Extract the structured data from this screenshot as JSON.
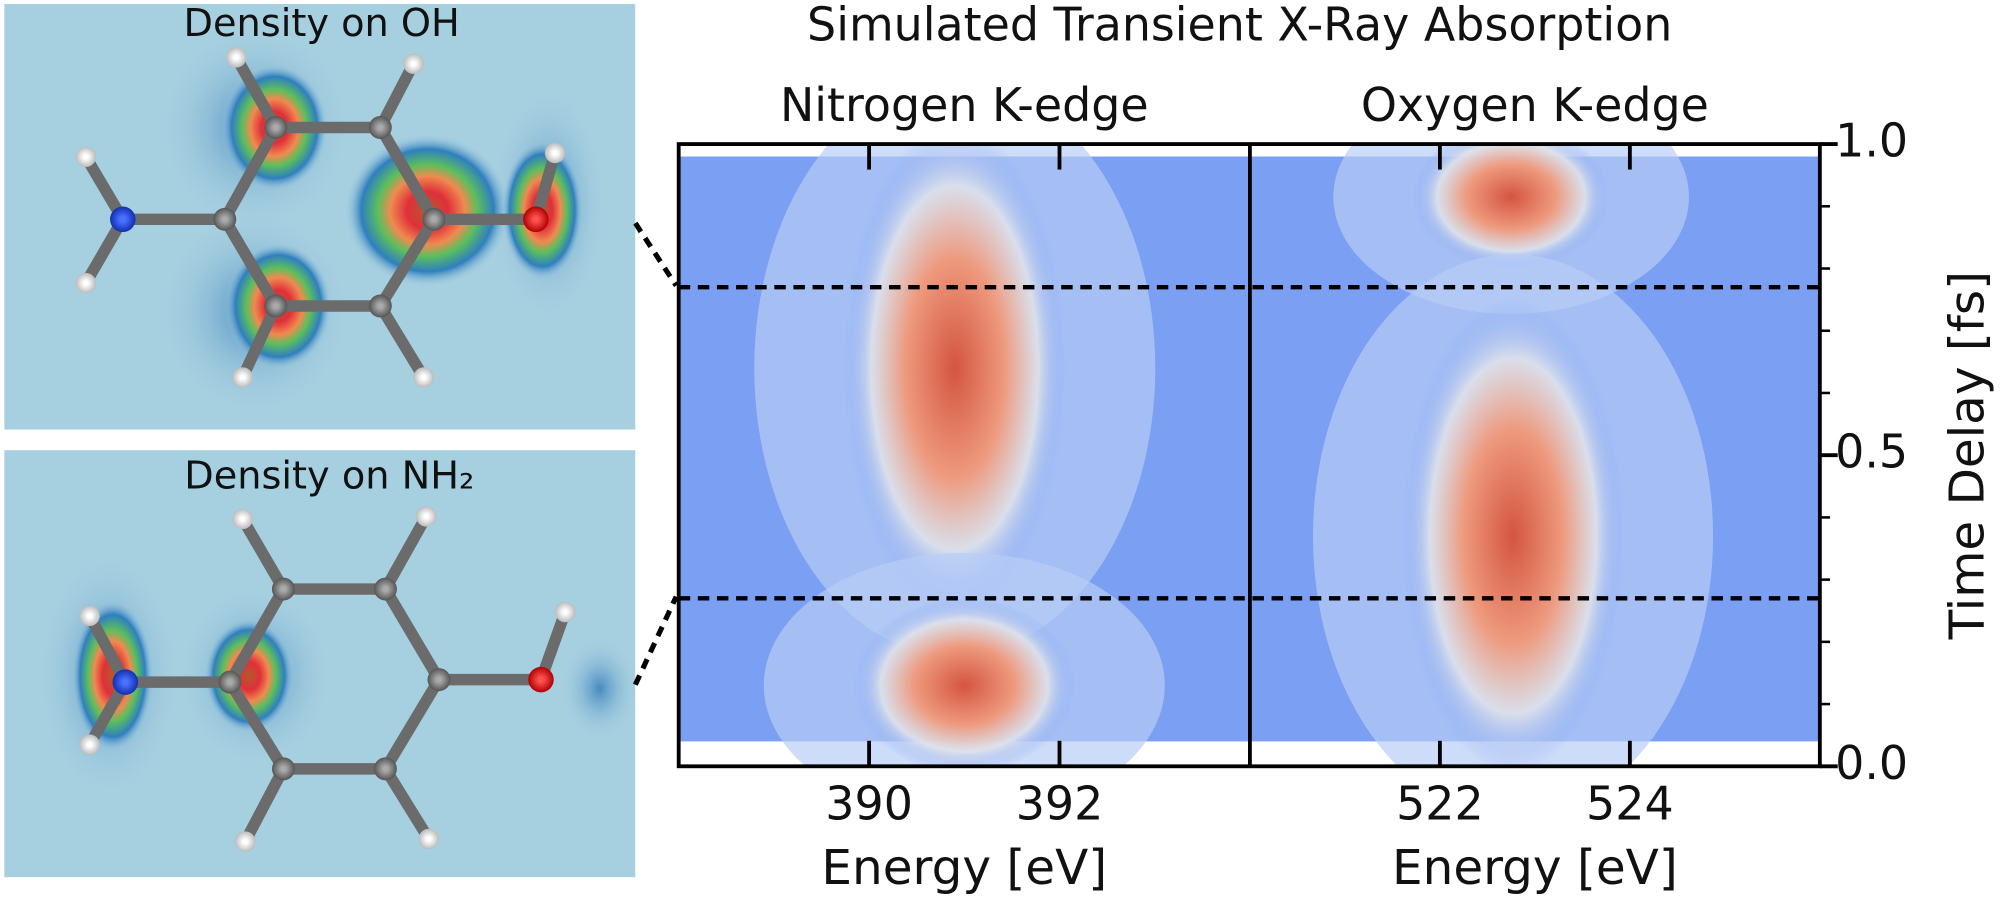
{
  "title": "Simulated Transient X-Ray Absorption",
  "molecule_panels": [
    {
      "label": "Density on OH"
    },
    {
      "label": "Density on NH₂"
    }
  ],
  "time_markers": [
    0.27,
    0.77
  ],
  "chart_data": [
    {
      "type": "heatmap",
      "title": "Nitrogen K-edge",
      "xlabel": "Energy [eV]",
      "xlim": [
        388,
        394
      ],
      "xticks": [
        390,
        392
      ],
      "ylim": [
        0,
        1
      ],
      "time_extent": [
        0.04,
        0.98
      ],
      "low_color": "#7b9ff2",
      "high_color": "#d4553f",
      "bands": [
        {
          "energy": 390.9,
          "width": 0.45,
          "time": [
            0.3,
            0.98
          ]
        },
        {
          "energy": 391.0,
          "width": 0.45,
          "time": [
            0.04,
            0.22
          ]
        }
      ]
    },
    {
      "type": "heatmap",
      "title": "Oxygen K-edge",
      "xlabel": "Energy [eV]",
      "xlim": [
        520,
        526
      ],
      "xticks": [
        522,
        524
      ],
      "ylim": [
        0,
        1
      ],
      "time_extent": [
        0.04,
        0.98
      ],
      "low_color": "#7b9ff2",
      "high_color": "#d4553f",
      "ylabel": "Time Delay [fs]",
      "yticks": [
        {
          "value": 0,
          "label": "0.0"
        },
        0.5,
        {
          "value": 1,
          "label": "1.0"
        }
      ],
      "yminorticks": [
        0.1,
        0.2,
        0.3,
        0.4,
        0.6,
        0.7,
        0.8,
        0.9
      ],
      "bands": [
        {
          "energy": 522.75,
          "width": 0.4,
          "time": [
            0.85,
            0.98
          ]
        },
        {
          "energy": 522.77,
          "width": 0.45,
          "time": [
            0.04,
            0.7
          ]
        }
      ]
    }
  ]
}
